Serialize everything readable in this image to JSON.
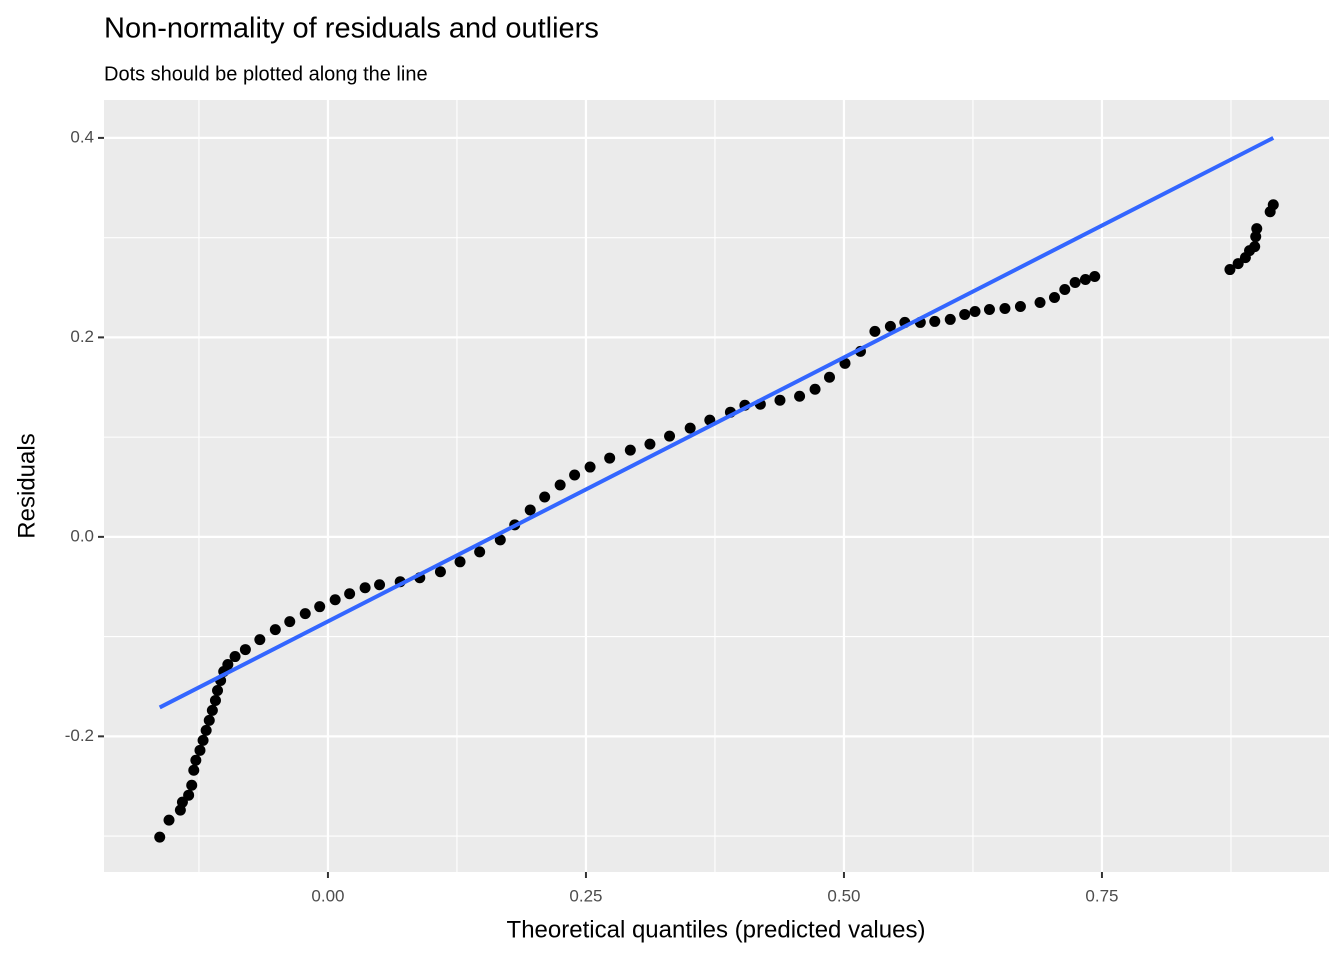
{
  "chart_data": {
    "type": "scatter",
    "title": "Non-normality of residuals and outliers",
    "subtitle": "Dots should be plotted along the line",
    "x_label": "Theoretical quantiles (predicted values)",
    "y_label": "Residuals",
    "xlim": [
      -0.217,
      0.97
    ],
    "ylim": [
      -0.336,
      0.438
    ],
    "xticks": [
      {
        "value": 0,
        "label": "0.00"
      },
      0.25,
      {
        "value": 0.5,
        "label": "0.50"
      },
      0.75
    ],
    "yticks": [
      -0.2,
      {
        "value": 0,
        "label": "0.0"
      },
      0.2,
      0.4
    ],
    "x_minor_grid": [
      -0.125,
      0.125,
      0.375,
      0.625,
      0.875
    ],
    "y_minor_grid": [
      -0.3,
      -0.1,
      0.1,
      0.3
    ],
    "grid": true,
    "color": "#000000",
    "x": [
      -0.163,
      -0.154,
      -0.143,
      -0.141,
      -0.135,
      -0.132,
      -0.13,
      -0.128,
      -0.124,
      -0.121,
      -0.118,
      -0.115,
      -0.112,
      -0.109,
      -0.107,
      -0.104,
      -0.101,
      -0.097,
      -0.09,
      -0.08,
      -0.066,
      -0.051,
      -0.037,
      -0.022,
      -0.008,
      0.007,
      0.021,
      0.036,
      0.05,
      0.07,
      0.089,
      0.109,
      0.128,
      0.147,
      0.167,
      0.181,
      0.196,
      0.21,
      0.225,
      0.239,
      0.254,
      0.273,
      0.293,
      0.312,
      0.331,
      0.351,
      0.37,
      0.39,
      0.404,
      0.419,
      0.438,
      0.457,
      0.472,
      0.486,
      0.501,
      0.516,
      0.53,
      0.545,
      0.559,
      0.574,
      0.588,
      0.603,
      0.617,
      0.627,
      0.641,
      0.656,
      0.671,
      0.69,
      0.704,
      0.714,
      0.724,
      0.734,
      0.743,
      0.874,
      0.882,
      0.889,
      0.893,
      0.898,
      0.899,
      0.9,
      0.913,
      0.916
    ],
    "y": [
      -0.301,
      -0.284,
      -0.274,
      -0.266,
      -0.259,
      -0.249,
      -0.234,
      -0.224,
      -0.214,
      -0.204,
      -0.194,
      -0.184,
      -0.174,
      -0.164,
      -0.154,
      -0.144,
      -0.135,
      -0.128,
      -0.12,
      -0.113,
      -0.103,
      -0.093,
      -0.085,
      -0.077,
      -0.07,
      -0.063,
      -0.057,
      -0.051,
      -0.048,
      -0.045,
      -0.041,
      -0.035,
      -0.025,
      -0.015,
      -0.003,
      0.012,
      0.027,
      0.04,
      0.052,
      0.062,
      0.07,
      0.079,
      0.087,
      0.093,
      0.101,
      0.109,
      0.117,
      0.125,
      0.132,
      0.133,
      0.137,
      0.141,
      0.148,
      0.16,
      0.174,
      0.186,
      0.206,
      0.211,
      0.215,
      0.215,
      0.216,
      0.218,
      0.223,
      0.226,
      0.228,
      0.229,
      0.231,
      0.235,
      0.24,
      0.248,
      0.255,
      0.258,
      0.261,
      0.268,
      0.274,
      0.28,
      0.287,
      0.291,
      0.301,
      0.309,
      0.326,
      0.333
    ],
    "reference_line": {
      "x": [
        -0.163,
        0.916
      ],
      "y": [
        -0.171,
        0.4
      ],
      "color": "#3366ff"
    }
  }
}
